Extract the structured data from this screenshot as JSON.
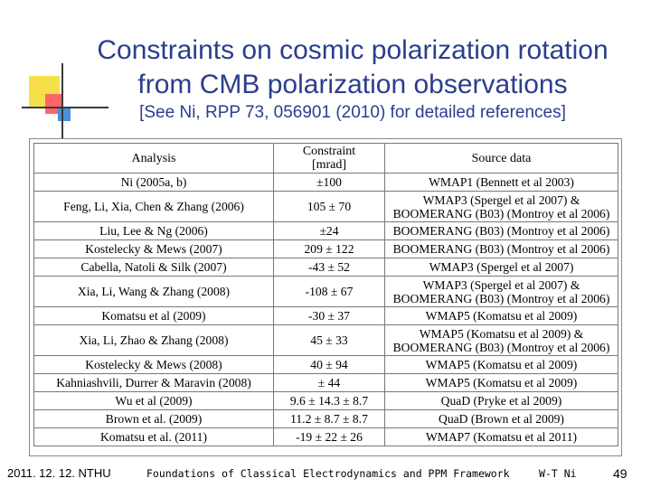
{
  "slide": {
    "title_line1": "Constraints on cosmic polarization rotation",
    "title_line2": "from CMB polarization observations",
    "subtitle": "[See Ni, RPP 73, 056901 (2010) for detailed references]"
  },
  "table": {
    "headers": {
      "analysis": "Analysis",
      "constraint_line1": "Constraint",
      "constraint_line2": "[mrad]",
      "source": "Source data"
    },
    "rows": [
      {
        "analysis": "Ni (2005a, b)",
        "constraint": "±100",
        "source_line1": "WMAP1 (Bennett et al 2003)",
        "source_line2": ""
      },
      {
        "analysis": "Feng, Li, Xia, Chen & Zhang (2006)",
        "constraint": "105 ± 70",
        "source_line1": "WMAP3 (Spergel et al 2007) &",
        "source_line2": "BOOMERANG (B03) (Montroy et al 2006)"
      },
      {
        "analysis": "Liu, Lee & Ng (2006)",
        "constraint": "±24",
        "source_line1": "BOOMERANG (B03) (Montroy et al 2006)",
        "source_line2": ""
      },
      {
        "analysis": "Kostelecky & Mews (2007)",
        "constraint": "209 ± 122",
        "source_line1": "BOOMERANG (B03) (Montroy et al 2006)",
        "source_line2": ""
      },
      {
        "analysis": "Cabella, Natoli & Silk (2007)",
        "constraint": "-43 ± 52",
        "source_line1": "WMAP3 (Spergel et al 2007)",
        "source_line2": ""
      },
      {
        "analysis": "Xia, Li, Wang & Zhang (2008)",
        "constraint": "-108 ± 67",
        "source_line1": "WMAP3 (Spergel et al 2007) &",
        "source_line2": "BOOMERANG (B03) (Montroy et al 2006)"
      },
      {
        "analysis": "Komatsu et al (2009)",
        "constraint": "-30 ± 37",
        "source_line1": "WMAP5 (Komatsu et al 2009)",
        "source_line2": ""
      },
      {
        "analysis": "Xia, Li, Zhao & Zhang (2008)",
        "constraint": "45 ± 33",
        "source_line1": "WMAP5 (Komatsu et al 2009) &",
        "source_line2": "BOOMERANG (B03) (Montroy et al 2006)"
      },
      {
        "analysis": "Kostelecky & Mews (2008)",
        "constraint": "40 ± 94",
        "source_line1": "WMAP5 (Komatsu et al 2009)",
        "source_line2": ""
      },
      {
        "analysis": "Kahniashvili, Durrer & Maravin (2008)",
        "constraint": "± 44",
        "source_line1": "WMAP5 (Komatsu et al 2009)",
        "source_line2": ""
      },
      {
        "analysis": "Wu et al (2009)",
        "constraint": "9.6 ± 14.3 ± 8.7",
        "source_line1": "QuaD (Pryke et al 2009)",
        "source_line2": ""
      },
      {
        "analysis": "Brown et al. (2009)",
        "constraint": "11.2 ± 8.7 ± 8.7",
        "source_line1": "QuaD (Brown et al 2009)",
        "source_line2": ""
      },
      {
        "analysis": "Komatsu et al. (2011)",
        "constraint": "-19 ± 22 ± 26",
        "source_line1": "WMAP7 (Komatsu et al 2011)",
        "source_line2": ""
      }
    ]
  },
  "footer": {
    "date": "2011. 12. 12. NTHU",
    "course": "Foundations of Classical Electrodynamics and PPM Framework",
    "author": "W-T Ni",
    "page": "49"
  }
}
